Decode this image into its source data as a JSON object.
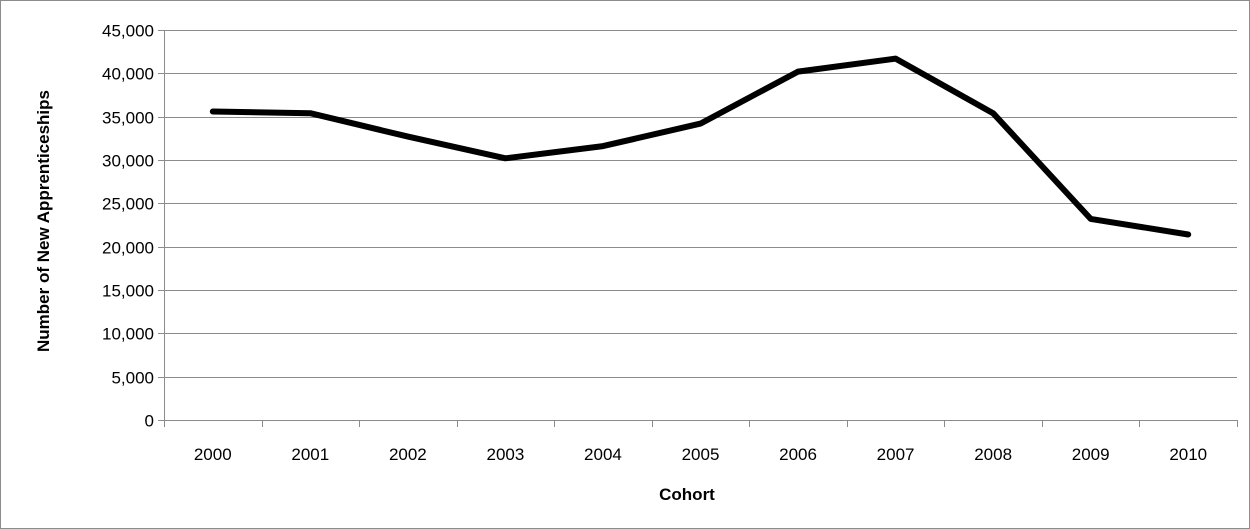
{
  "chart_data": {
    "type": "line",
    "title": "",
    "xlabel": "Cohort",
    "ylabel": "Number of New Apprenticeships",
    "categories": [
      "2000",
      "2001",
      "2002",
      "2003",
      "2004",
      "2005",
      "2006",
      "2007",
      "2008",
      "2009",
      "2010"
    ],
    "series": [
      {
        "values": [
          35600,
          35400,
          32700,
          30200,
          31600,
          34200,
          40200,
          41700,
          35400,
          23200,
          21400
        ]
      }
    ],
    "ylim": [
      0,
      45000
    ],
    "yticks": [
      0,
      5000,
      10000,
      15000,
      20000,
      25000,
      30000,
      35000,
      40000,
      45000
    ],
    "ytick_labels": [
      "0",
      "5,000",
      "10,000",
      "15,000",
      "20,000",
      "25,000",
      "30,000",
      "35,000",
      "40,000",
      "45,000"
    ],
    "grid": "horizontal",
    "legend": "none",
    "colors": {
      "line": "#000000",
      "grid": "#8c8c8c",
      "axis": "#8c8c8c"
    }
  }
}
